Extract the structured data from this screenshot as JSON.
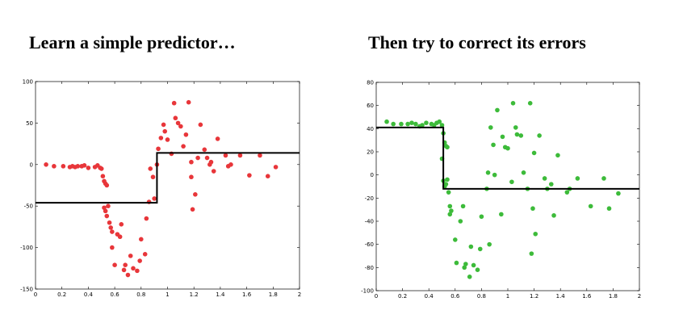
{
  "titles": {
    "left": "Learn a simple predictor…",
    "right": "Then try to correct its errors"
  },
  "chart_data": [
    {
      "type": "scatter",
      "title": "Learn a simple predictor…",
      "xlim": [
        0,
        2
      ],
      "ylim": [
        -150,
        100
      ],
      "x_ticks": [
        0,
        0.2,
        0.4,
        0.6,
        0.8,
        1,
        1.2,
        1.4,
        1.6,
        1.8,
        2
      ],
      "x_tick_labels": [
        "0",
        "0.2",
        "0.4",
        "0.6",
        "0.8",
        "1",
        "1.2",
        "1.4",
        "1.6",
        "1.8",
        "2"
      ],
      "y_ticks": [
        -150,
        -100,
        -50,
        0,
        50,
        100
      ],
      "y_tick_labels": [
        "-150",
        "-100",
        "-50",
        "0",
        "50",
        "100"
      ],
      "point_color": "#e8363a",
      "line_color": "#000000",
      "step_line": [
        [
          0,
          -46
        ],
        [
          0.92,
          -46
        ],
        [
          0.92,
          14
        ],
        [
          2,
          14
        ]
      ],
      "points": [
        [
          0.08,
          0
        ],
        [
          0.14,
          -2
        ],
        [
          0.21,
          -2
        ],
        [
          0.26,
          -3
        ],
        [
          0.28,
          -2
        ],
        [
          0.3,
          -3
        ],
        [
          0.32,
          -2
        ],
        [
          0.35,
          -2
        ],
        [
          0.37,
          -1
        ],
        [
          0.4,
          -4
        ],
        [
          0.45,
          -3
        ],
        [
          0.47,
          -1
        ],
        [
          0.49,
          -4
        ],
        [
          0.5,
          -5
        ],
        [
          0.51,
          -14
        ],
        [
          0.52,
          -20
        ],
        [
          0.53,
          -23
        ],
        [
          0.54,
          -25
        ],
        [
          0.52,
          -52
        ],
        [
          0.53,
          -56
        ],
        [
          0.54,
          -62
        ],
        [
          0.55,
          -50
        ],
        [
          0.56,
          -70
        ],
        [
          0.57,
          -76
        ],
        [
          0.58,
          -81
        ],
        [
          0.58,
          -100
        ],
        [
          0.6,
          -121
        ],
        [
          0.62,
          -84
        ],
        [
          0.64,
          -87
        ],
        [
          0.65,
          -72
        ],
        [
          0.67,
          -127
        ],
        [
          0.68,
          -121
        ],
        [
          0.7,
          -133
        ],
        [
          0.72,
          -110
        ],
        [
          0.74,
          -125
        ],
        [
          0.77,
          -128
        ],
        [
          0.79,
          -116
        ],
        [
          0.8,
          -90
        ],
        [
          0.83,
          -108
        ],
        [
          0.84,
          -65
        ],
        [
          0.86,
          -45
        ],
        [
          0.87,
          -5
        ],
        [
          0.89,
          -15
        ],
        [
          0.9,
          -41
        ],
        [
          0.92,
          0
        ],
        [
          0.93,
          19
        ],
        [
          0.95,
          32
        ],
        [
          0.97,
          48
        ],
        [
          0.98,
          40
        ],
        [
          1.0,
          30
        ],
        [
          1.03,
          13
        ],
        [
          1.05,
          74
        ],
        [
          1.06,
          56
        ],
        [
          1.08,
          50
        ],
        [
          1.1,
          46
        ],
        [
          1.12,
          22
        ],
        [
          1.14,
          36
        ],
        [
          1.16,
          75
        ],
        [
          1.18,
          3
        ],
        [
          1.18,
          -15
        ],
        [
          1.19,
          -54
        ],
        [
          1.21,
          -36
        ],
        [
          1.23,
          8
        ],
        [
          1.25,
          48
        ],
        [
          1.28,
          18
        ],
        [
          1.3,
          8
        ],
        [
          1.32,
          0
        ],
        [
          1.33,
          3
        ],
        [
          1.35,
          -8
        ],
        [
          1.38,
          31
        ],
        [
          1.44,
          11
        ],
        [
          1.46,
          -2
        ],
        [
          1.48,
          0
        ],
        [
          1.55,
          11
        ],
        [
          1.62,
          -13
        ],
        [
          1.7,
          11
        ],
        [
          1.76,
          -14
        ],
        [
          1.82,
          -3
        ]
      ]
    },
    {
      "type": "scatter",
      "title": "Then try to correct its errors",
      "xlim": [
        0,
        2
      ],
      "ylim": [
        -100,
        80
      ],
      "x_ticks": [
        0,
        0.2,
        0.4,
        0.6,
        0.8,
        1,
        1.2,
        1.4,
        1.6,
        1.8,
        2
      ],
      "x_tick_labels": [
        "0",
        "0.2",
        "0.4",
        "0.6",
        "0.8",
        "1",
        "1.2",
        "1.4",
        "1.6",
        "1.8",
        "2"
      ],
      "y_ticks": [
        -100,
        -80,
        -60,
        -40,
        -20,
        0,
        20,
        40,
        60,
        80
      ],
      "y_tick_labels": [
        "-100",
        "-80",
        "-60",
        "-40",
        "-20",
        "0",
        "20",
        "40",
        "60",
        "80"
      ],
      "point_color": "#3dbb3a",
      "line_color": "#000000",
      "step_line": [
        [
          0,
          41
        ],
        [
          0.51,
          41
        ],
        [
          0.51,
          -12
        ],
        [
          2,
          -12
        ]
      ],
      "points": [
        [
          0.08,
          46
        ],
        [
          0.13,
          44
        ],
        [
          0.19,
          44
        ],
        [
          0.24,
          44
        ],
        [
          0.27,
          45
        ],
        [
          0.3,
          44
        ],
        [
          0.33,
          42
        ],
        [
          0.35,
          43
        ],
        [
          0.38,
          45
        ],
        [
          0.42,
          44
        ],
        [
          0.44,
          43
        ],
        [
          0.46,
          45
        ],
        [
          0.48,
          46
        ],
        [
          0.5,
          43
        ],
        [
          0.51,
          36
        ],
        [
          0.52,
          28
        ],
        [
          0.53,
          25
        ],
        [
          0.54,
          24
        ],
        [
          0.5,
          14
        ],
        [
          0.51,
          -5
        ],
        [
          0.52,
          -10
        ],
        [
          0.53,
          -8
        ],
        [
          0.54,
          -4
        ],
        [
          0.55,
          -15
        ],
        [
          0.56,
          -27
        ],
        [
          0.56,
          -34
        ],
        [
          0.57,
          -31
        ],
        [
          0.6,
          -56
        ],
        [
          0.61,
          -76
        ],
        [
          0.64,
          -40
        ],
        [
          0.66,
          -27
        ],
        [
          0.67,
          -80
        ],
        [
          0.68,
          -77
        ],
        [
          0.71,
          -88
        ],
        [
          0.72,
          -62
        ],
        [
          0.74,
          -78
        ],
        [
          0.77,
          -82
        ],
        [
          0.79,
          -64
        ],
        [
          0.8,
          -36
        ],
        [
          0.84,
          -12
        ],
        [
          0.85,
          2
        ],
        [
          0.86,
          -60
        ],
        [
          0.87,
          41
        ],
        [
          0.89,
          26
        ],
        [
          0.9,
          0
        ],
        [
          0.92,
          56
        ],
        [
          0.95,
          -34
        ],
        [
          0.96,
          33
        ],
        [
          0.98,
          24
        ],
        [
          1.0,
          23
        ],
        [
          1.03,
          -6
        ],
        [
          1.04,
          62
        ],
        [
          1.06,
          41
        ],
        [
          1.07,
          35
        ],
        [
          1.1,
          34
        ],
        [
          1.12,
          2
        ],
        [
          1.15,
          -12
        ],
        [
          1.17,
          62
        ],
        [
          1.18,
          -68
        ],
        [
          1.19,
          -29
        ],
        [
          1.2,
          19
        ],
        [
          1.21,
          -51
        ],
        [
          1.24,
          34
        ],
        [
          1.28,
          -3
        ],
        [
          1.3,
          -12
        ],
        [
          1.33,
          -8
        ],
        [
          1.35,
          -35
        ],
        [
          1.38,
          17
        ],
        [
          1.45,
          -15
        ],
        [
          1.47,
          -12
        ],
        [
          1.53,
          -3
        ],
        [
          1.63,
          -27
        ],
        [
          1.73,
          -3
        ],
        [
          1.77,
          -29
        ],
        [
          1.84,
          -16
        ]
      ]
    }
  ]
}
